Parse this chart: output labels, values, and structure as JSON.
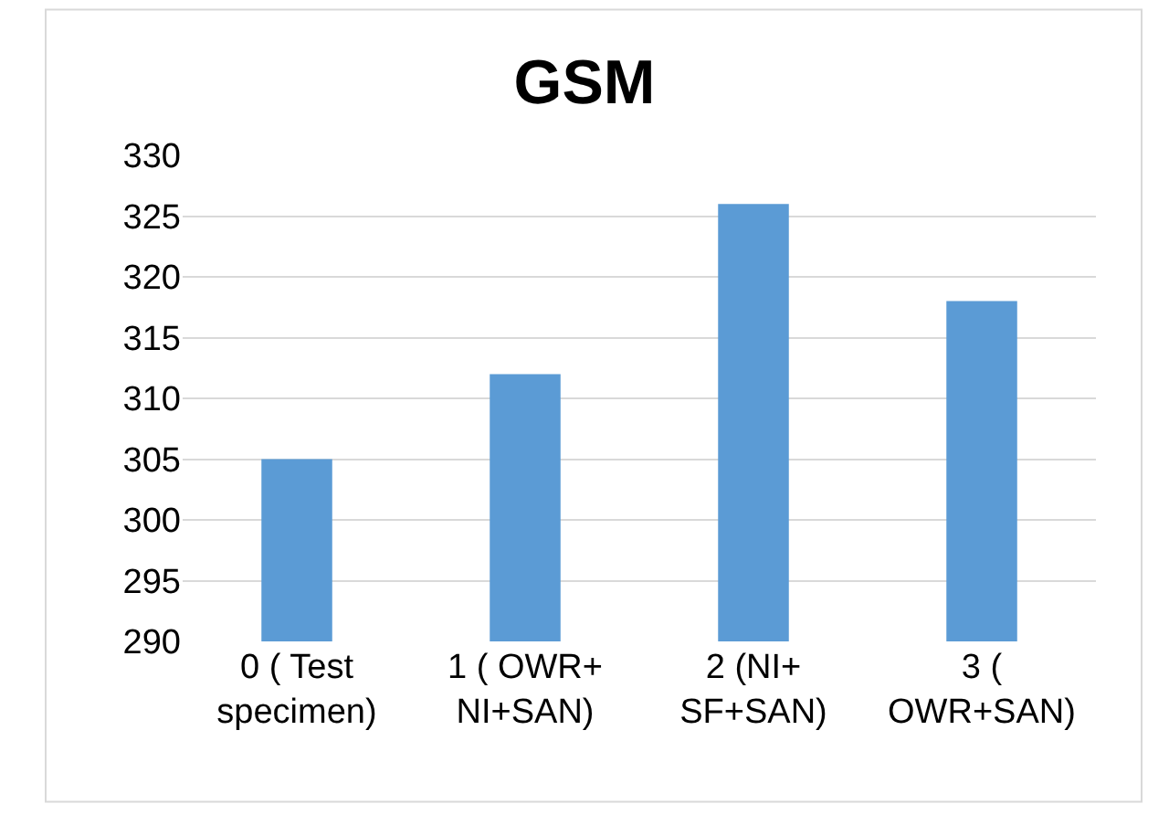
{
  "chart_data": {
    "type": "bar",
    "title": "GSM",
    "categories": [
      "0 ( Test\nspecimen)",
      "1 ( OWR+\nNI+SAN)",
      "2 (NI+\nSF+SAN)",
      "3 (\nOWR+SAN)"
    ],
    "values": [
      305,
      312,
      326,
      318
    ],
    "color": "#5b9bd5",
    "ylim": [
      290,
      330
    ],
    "yticks": [
      290,
      295,
      300,
      305,
      310,
      315,
      320,
      325,
      330
    ],
    "grid": "y",
    "legend": false
  }
}
